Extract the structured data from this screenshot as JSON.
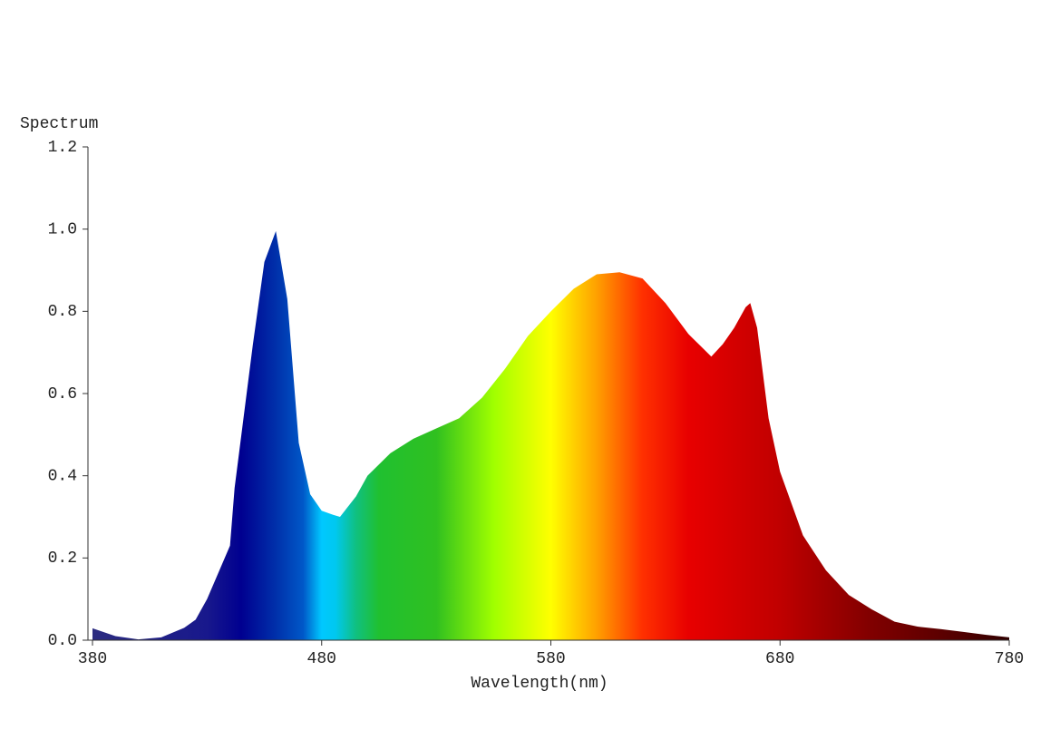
{
  "chart_data": {
    "type": "area",
    "y_label": "Spectrum",
    "x_label": "Wavelength(nm)",
    "x": [
      380,
      390,
      400,
      410,
      420,
      425,
      430,
      440,
      442,
      450,
      455,
      460,
      465,
      470,
      475,
      480,
      485,
      488,
      495,
      500,
      510,
      520,
      530,
      540,
      550,
      560,
      570,
      580,
      590,
      600,
      610,
      620,
      630,
      640,
      650,
      655,
      660,
      665,
      667,
      670,
      675,
      680,
      690,
      700,
      710,
      720,
      730,
      740,
      750,
      760,
      770,
      780
    ],
    "values": [
      0.029,
      0.01,
      0.002,
      0.007,
      0.03,
      0.05,
      0.1,
      0.23,
      0.37,
      0.72,
      0.92,
      0.995,
      0.83,
      0.48,
      0.355,
      0.315,
      0.305,
      0.3,
      0.35,
      0.4,
      0.455,
      0.49,
      0.515,
      0.54,
      0.59,
      0.66,
      0.74,
      0.8,
      0.855,
      0.89,
      0.895,
      0.88,
      0.82,
      0.745,
      0.69,
      0.72,
      0.76,
      0.81,
      0.82,
      0.76,
      0.54,
      0.41,
      0.255,
      0.17,
      0.11,
      0.075,
      0.045,
      0.033,
      0.027,
      0.02,
      0.013,
      0.007
    ],
    "fill_gradient": [
      {
        "x": 380,
        "color": "#2c2c80"
      },
      {
        "x": 430,
        "color": "#18188c"
      },
      {
        "x": 445,
        "color": "#000090"
      },
      {
        "x": 460,
        "color": "#0030aa"
      },
      {
        "x": 472,
        "color": "#0058c8"
      },
      {
        "x": 480,
        "color": "#00c8ff"
      },
      {
        "x": 486,
        "color": "#00c8f0"
      },
      {
        "x": 495,
        "color": "#10c080"
      },
      {
        "x": 505,
        "color": "#20c030"
      },
      {
        "x": 530,
        "color": "#30c020"
      },
      {
        "x": 555,
        "color": "#a0ff00"
      },
      {
        "x": 580,
        "color": "#ffff00"
      },
      {
        "x": 600,
        "color": "#ffa000"
      },
      {
        "x": 620,
        "color": "#ff3000"
      },
      {
        "x": 640,
        "color": "#e80000"
      },
      {
        "x": 680,
        "color": "#c00000"
      },
      {
        "x": 720,
        "color": "#800000"
      },
      {
        "x": 760,
        "color": "#500000"
      },
      {
        "x": 780,
        "color": "#300000"
      }
    ],
    "xlim": [
      380,
      780
    ],
    "xticks": [
      380,
      480,
      580,
      680,
      780
    ],
    "ylim": [
      0,
      1.2
    ],
    "yticks": [
      {
        "value": 0,
        "label": "0.0"
      },
      {
        "value": 0.2,
        "label": "0.2"
      },
      {
        "value": 0.4,
        "label": "0.4"
      },
      {
        "value": 0.6,
        "label": "0.6"
      },
      {
        "value": 0.8,
        "label": "0.8"
      },
      {
        "value": 1.0,
        "label": "1.0"
      },
      {
        "value": 1.2,
        "label": "1.2"
      }
    ],
    "grid": false
  }
}
